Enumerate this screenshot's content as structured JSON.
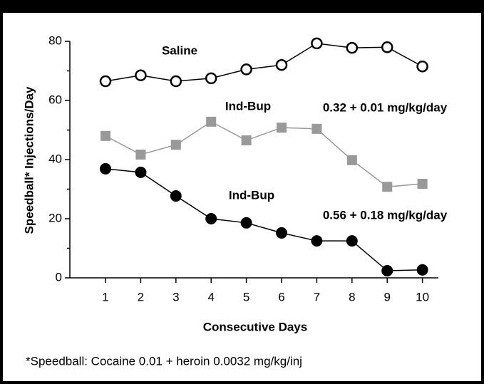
{
  "chart_data": {
    "type": "line",
    "xlabel": "Consecutive Days",
    "ylabel": "Speedball* Injections/Day",
    "x": [
      1,
      2,
      3,
      4,
      5,
      6,
      7,
      8,
      9,
      10
    ],
    "xlim": [
      0,
      10.45
    ],
    "xticks": [
      1,
      2,
      3,
      4,
      5,
      6,
      7,
      8,
      9,
      10
    ],
    "ylim": [
      0,
      80
    ],
    "yticks": [
      0,
      20,
      40,
      60,
      80
    ],
    "series": [
      {
        "name": "Saline",
        "color": "#000000",
        "marker": "open-circle",
        "values": [
          66.5,
          68.5,
          66.5,
          67.5,
          70.5,
          72,
          79.3,
          77.8,
          78,
          71.5
        ]
      },
      {
        "name": "Ind-Bup",
        "color": "#999999",
        "marker": "square",
        "values": [
          48,
          41.7,
          45,
          52.8,
          46.5,
          50.8,
          50.4,
          39.8,
          30.8,
          31.8
        ]
      },
      {
        "name": "Ind-Bup",
        "color": "#000000",
        "marker": "filled-circle",
        "values": [
          36.9,
          35.7,
          27.7,
          20,
          18.6,
          15.2,
          12.5,
          12.5,
          2.4,
          2.7
        ]
      }
    ],
    "annotations": [
      "0.32 + 0.01 mg/kg/day",
      "0.56 + 0.18 mg/kg/day"
    ],
    "footnote": "*Speedball: Cocaine 0.01 + heroin 0.0032 mg/kg/inj"
  }
}
